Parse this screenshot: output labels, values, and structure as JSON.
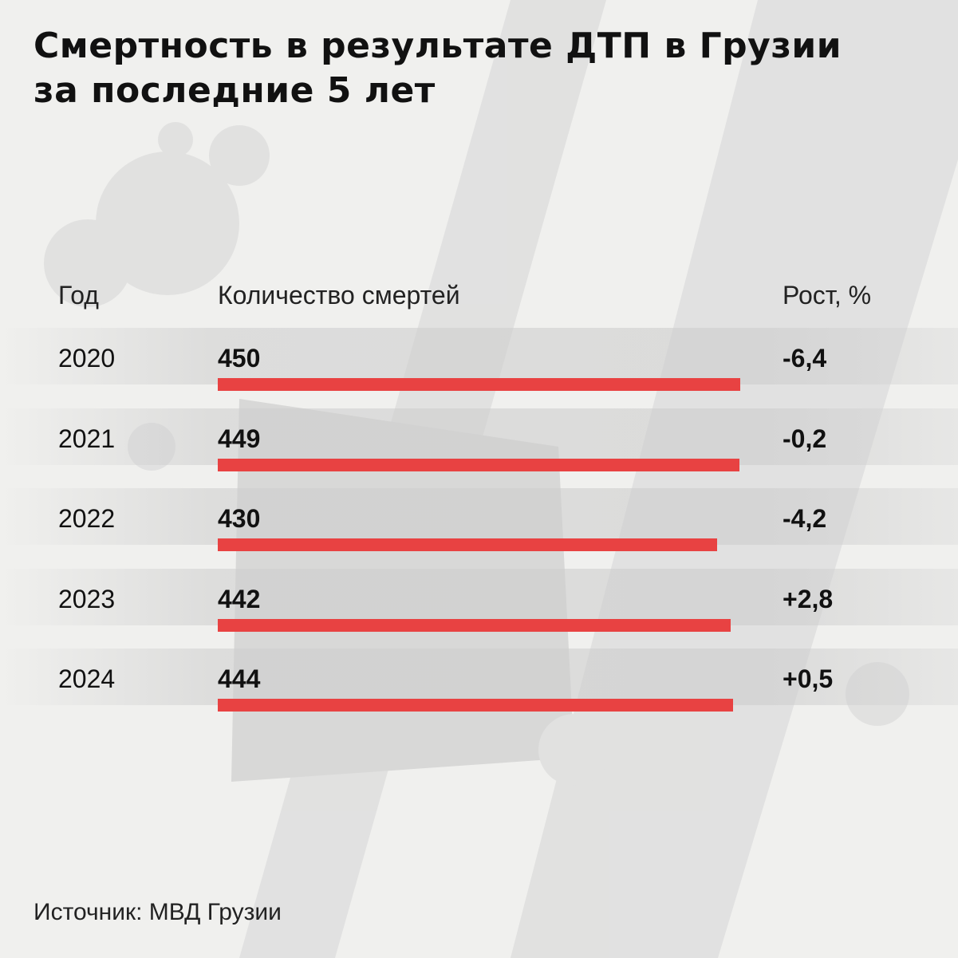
{
  "title_line1": "Смертность в результате ДТП в Грузии",
  "title_line2": "за последние 5 лет",
  "colors": {
    "bar": "#e84242",
    "background": "#f0f0ee"
  },
  "chart_data": {
    "type": "bar",
    "orientation": "horizontal",
    "title": "Смертность в результате ДТП в Грузии за последние 5 лет",
    "headers": [
      "Год",
      "Количество смертей",
      "Рост, %"
    ],
    "categories": [
      "2020",
      "2021",
      "2022",
      "2023",
      "2024"
    ],
    "values": [
      450,
      449,
      430,
      442,
      444
    ],
    "value_labels": [
      "450",
      "449",
      "430",
      "442",
      "444"
    ],
    "growth": [
      "-6,4",
      "-0,2",
      "-4,2",
      "+2,8",
      "+0,5"
    ],
    "xlim": [
      0,
      450
    ],
    "grid": false
  },
  "source": "Источник: МВД Грузии"
}
